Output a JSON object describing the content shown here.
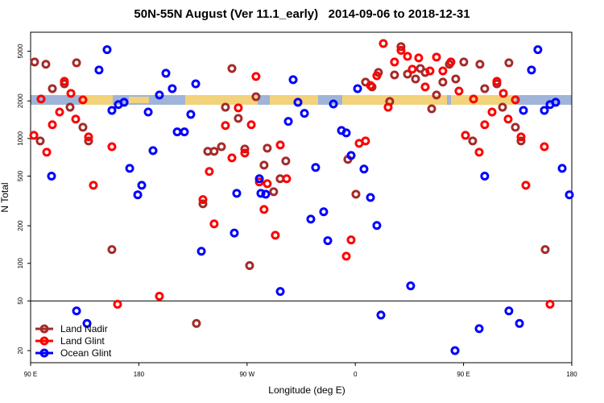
{
  "chart_data": {
    "type": "scatter",
    "title": "50N-55N August (Ver 11.1_early)   2014-09-06 to 2018-12-31",
    "x_label": "Longitude (deg E)",
    "y_label": "N Total",
    "xlim": [
      90,
      540
    ],
    "ylim": [
      16,
      7100
    ],
    "y_log": true,
    "hline": 50,
    "xticks": [
      {
        "value": 90,
        "label": "90 E"
      },
      {
        "value": 180,
        "label": "180"
      },
      {
        "value": 270,
        "label": "90 W"
      },
      {
        "value": 360,
        "label": "0"
      },
      {
        "value": 450,
        "label": "90 E"
      },
      {
        "value": 540,
        "label": "180"
      }
    ],
    "yticks": [
      20,
      50,
      100,
      200,
      500,
      1000,
      2000,
      5000
    ],
    "legend": "lower left",
    "series": [
      {
        "name": "Land Nadir",
        "color": "#a52a2a",
        "x": [
          93.3,
          98.0,
          102.7,
          108.1,
          118.1,
          122.8,
          128.2,
          133.5,
          138.2,
          157.6,
          227.9,
          233.3,
          237.3,
          242.6,
          248.7,
          252.0,
          257.4,
          262.7,
          268.1,
          272.1,
          277.4,
          284.1,
          286.8,
          292.1,
          297.5,
          302.2,
          360.5,
          353.8,
          368.5,
          373.9,
          379.2,
          388.6,
          392.6,
          398.0,
          403.4,
          410.1,
          414.1,
          418.1,
          423.5,
          427.5,
          432.8,
          438.2,
          443.5,
          450.2,
          457.6,
          463.6,
          467.6,
          477.7,
          482.4,
          487.7,
          493.1,
          497.8,
          517.9
        ],
        "values": [
          4100,
          956,
          3930,
          2510,
          2740,
          1780,
          4040,
          1230,
          956,
          129,
          33,
          300,
          790,
          790,
          860,
          1780,
          3640,
          1450,
          824,
          96,
          2160,
          612,
          837,
          375,
          476,
          660,
          358,
          680,
          2830,
          2590,
          3380,
          1980,
          3230,
          5440,
          3280,
          3000,
          3640,
          3380,
          1730,
          2230,
          2830,
          3930,
          3000,
          4100,
          956,
          3930,
          2510,
          2740,
          1780,
          4040,
          1230,
          956,
          129
        ]
      },
      {
        "name": "Land Glint",
        "color": "#ff0000",
        "x": [
          92.7,
          98.7,
          103.4,
          108.1,
          114.1,
          118.1,
          123.5,
          127.5,
          133.5,
          138.2,
          142.2,
          157.6,
          162.3,
          197.1,
          233.3,
          238.6,
          242.6,
          252.0,
          257.4,
          262.7,
          268.1,
          273.5,
          277.4,
          280.2,
          284.1,
          286.8,
          293.5,
          297.6,
          302.9,
          352.5,
          356.5,
          363.2,
          368.5,
          372.6,
          377.9,
          383.3,
          387.3,
          392.6,
          398.0,
          403.4,
          407.4,
          412.7,
          418.1,
          422.1,
          427.5,
          432.8,
          439.5,
          446.2,
          451.6,
          458.3,
          463.0,
          467.6,
          473.7,
          477.7,
          483.1,
          487.1,
          493.1,
          497.8,
          501.8,
          517.2,
          521.9
        ],
        "values": [
          1060,
          2070,
          777,
          1290,
          1630,
          2870,
          2300,
          1430,
          2040,
          1030,
          422,
          860,
          47,
          54.5,
          324,
          544,
          207,
          1270,
          700,
          1760,
          765,
          1290,
          3140,
          449,
          270,
          435,
          168,
          888,
          476,
          114,
          154,
          915,
          956,
          2660,
          3180,
          5770,
          1780,
          4100,
          5080,
          4550,
          3590,
          4420,
          2590,
          3480,
          4490,
          3480,
          4100,
          2400,
          1060,
          2070,
          777,
          1290,
          1630,
          2870,
          2300,
          1430,
          2040,
          1030,
          422,
          860,
          47
        ]
      },
      {
        "name": "Ocean Glint",
        "color": "#0000ff",
        "x": [
          107.4,
          128.2,
          136.9,
          146.9,
          153.6,
          157.6,
          163.0,
          167.7,
          172.4,
          179.1,
          182.4,
          187.8,
          191.8,
          197.1,
          202.5,
          207.8,
          211.9,
          217.9,
          223.2,
          227.3,
          232.0,
          259.4,
          261.4,
          280.2,
          281.5,
          285.5,
          297.6,
          308.3,
          304.3,
          312.3,
          317.7,
          327.0,
          323.0,
          333.7,
          337.1,
          341.8,
          348.5,
          352.5,
          356.5,
          361.9,
          367.2,
          372.6,
          377.9,
          381.3,
          406.0,
          442.9,
          463.0,
          467.6,
          487.7,
          496.5,
          499.8,
          506.5,
          511.8,
          517.2,
          521.9,
          526.6,
          532.0,
          538.0
        ],
        "values": [
          500,
          41.6,
          33,
          3540,
          5150,
          1680,
          1870,
          1950,
          577,
          354,
          422,
          1630,
          800,
          2230,
          3330,
          2510,
          1130,
          1130,
          1560,
          2740,
          125,
          175,
          364,
          476,
          364,
          358,
          59.5,
          2960,
          1370,
          1950,
          1590,
          586,
          226,
          259,
          152,
          1890,
          1160,
          1110,
          732,
          2510,
          569,
          337,
          201,
          38.5,
          66,
          20,
          30,
          500,
          41.6,
          33,
          1680,
          3540,
          5150,
          1680,
          1870,
          1950,
          577,
          354
        ]
      }
    ]
  }
}
